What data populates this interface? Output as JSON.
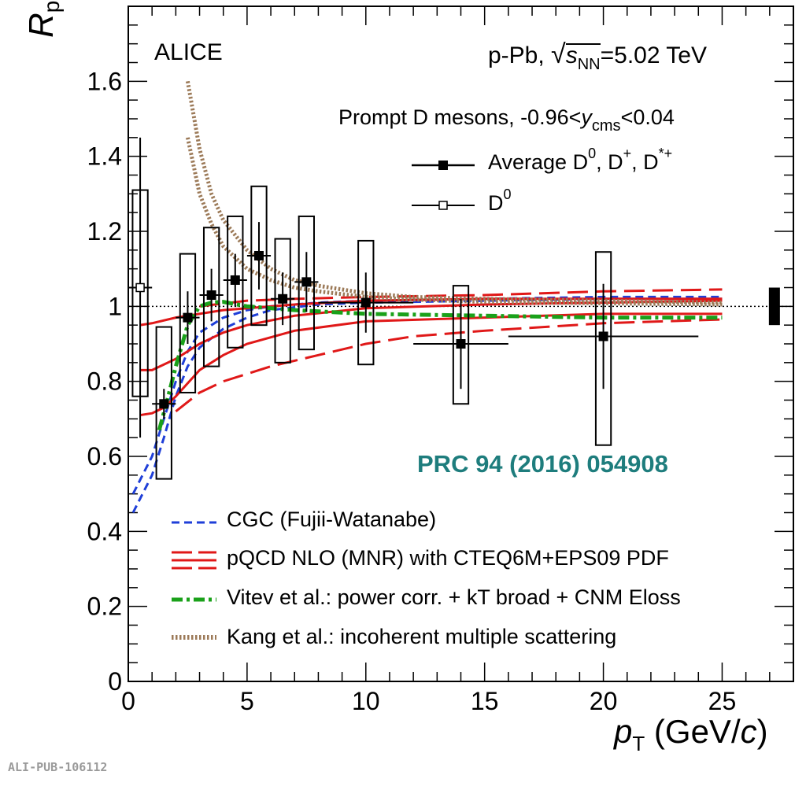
{
  "chart_data": {
    "type": "scatter",
    "title": "",
    "experiment": "ALICE",
    "system": {
      "prefix": "p-Pb, ",
      "s": "s",
      "sub": "NN",
      "energy": "=5.02 TeV"
    },
    "selection": {
      "label": "Prompt D mesons, -0.96<",
      "y": "y",
      "y_sub": "cms",
      "suffix": "<0.04"
    },
    "ylabel": {
      "main": "R",
      "sub": "pPb"
    },
    "xlabel": {
      "p": "p",
      "p_sub": "T",
      "unit_a": " (GeV/",
      "unit_c": "c",
      "unit_b": ")"
    },
    "xlim": [
      0,
      28
    ],
    "ylim": [
      0,
      1.8
    ],
    "xticks": [
      "0",
      "5",
      "10",
      "15",
      "20",
      "25"
    ],
    "yticks": [
      "0",
      "0.2",
      "0.4",
      "0.6",
      "0.8",
      "1",
      "1.2",
      "1.4",
      "1.6"
    ],
    "reference": "PRC 94 (2016) 054908",
    "footer": "ALI-PUB-106112",
    "colors": {
      "cgc": "#1f3fd8",
      "pqcd": "#e01818",
      "vitev": "#1aa11a",
      "kang": "#9c7a58",
      "reference": "#1e7d7d"
    },
    "series": [
      {
        "name": "Average D0, D+, D*+",
        "legend": {
          "text": "Average D",
          "s1": "0",
          "t1": ", D",
          "s2": "+",
          "t2": ", D",
          "s3": "*+"
        },
        "marker": "filled-square",
        "x": [
          1.5,
          2.5,
          3.5,
          4.5,
          5.5,
          6.5,
          7.5,
          10,
          14,
          20
        ],
        "xerr": [
          0.5,
          0.5,
          0.5,
          0.5,
          0.5,
          0.5,
          0.5,
          2,
          2,
          4
        ],
        "y": [
          0.74,
          0.97,
          1.03,
          1.07,
          1.135,
          1.02,
          1.065,
          1.01,
          0.9,
          0.92
        ],
        "stat": [
          0.04,
          0.07,
          0.07,
          0.07,
          0.09,
          0.07,
          0.08,
          0.08,
          0.12,
          0.14
        ],
        "syst_lo": [
          0.54,
          0.77,
          0.84,
          0.89,
          0.95,
          0.85,
          0.885,
          0.845,
          0.74,
          0.63
        ],
        "syst_hi": [
          0.945,
          1.14,
          1.21,
          1.24,
          1.32,
          1.18,
          1.24,
          1.175,
          1.055,
          1.145
        ]
      },
      {
        "name": "D0",
        "legend": {
          "text": "D",
          "s1": "0"
        },
        "marker": "open-square",
        "x": [
          0.5
        ],
        "xerr": [
          0.5
        ],
        "y": [
          1.05
        ],
        "stat": [
          0.4
        ],
        "syst_lo": [
          0.76
        ],
        "syst_hi": [
          1.31
        ]
      }
    ],
    "models": [
      {
        "name": "CGC (Fujii-Watanabe)",
        "style": "dashed",
        "color": "blue",
        "curves": [
          {
            "x": [
              0.2,
              1,
              1.5,
              2,
              2.5,
              3,
              4,
              5,
              6,
              8,
              10,
              15,
              20,
              25
            ],
            "y": [
              0.45,
              0.55,
              0.65,
              0.76,
              0.84,
              0.89,
              0.94,
              0.97,
              0.99,
              1.005,
              1.01,
              1.015,
              1.02,
              1.02
            ]
          },
          {
            "x": [
              0.2,
              1,
              1.5,
              2,
              2.5,
              3,
              4,
              5,
              6,
              8,
              10,
              15,
              20,
              25
            ],
            "y": [
              0.5,
              0.6,
              0.7,
              0.8,
              0.88,
              0.93,
              0.97,
              0.99,
              1.0,
              1.01,
              1.015,
              1.02,
              1.025,
              1.025
            ]
          }
        ]
      },
      {
        "name": "pQCD NLO (MNR) with CTEQ6M+EPS09 PDF",
        "style": "solid+dashed",
        "color": "red",
        "curves": [
          {
            "dash": false,
            "x": [
              0.5,
              1,
              1.5,
              2,
              3,
              4,
              5,
              7,
              10,
              15,
              20,
              25
            ],
            "y": [
              0.71,
              0.715,
              0.73,
              0.76,
              0.83,
              0.87,
              0.9,
              0.935,
              0.96,
              0.97,
              0.98,
              0.98
            ]
          },
          {
            "dash": false,
            "x": [
              0.5,
              1,
              2,
              3,
              4,
              5,
              7,
              10,
              15,
              20,
              25
            ],
            "y": [
              0.83,
              0.83,
              0.86,
              0.9,
              0.93,
              0.95,
              0.975,
              0.995,
              1.005,
              1.01,
              1.015
            ]
          },
          {
            "dash": false,
            "x": [
              0.5,
              1,
              2,
              3,
              4,
              5,
              7,
              10,
              15,
              20,
              25
            ],
            "y": [
              0.95,
              0.955,
              0.97,
              0.98,
              0.99,
              0.995,
              1.005,
              1.015,
              1.02,
              1.02,
              1.02
            ]
          },
          {
            "dash": true,
            "x": [
              2,
              3,
              4,
              5,
              6,
              8,
              10,
              12,
              15,
              20,
              25
            ],
            "y": [
              0.72,
              0.77,
              0.8,
              0.82,
              0.84,
              0.87,
              0.9,
              0.92,
              0.935,
              0.955,
              0.965
            ]
          },
          {
            "dash": true,
            "x": [
              3,
              5,
              7,
              10,
              15,
              20,
              25
            ],
            "y": [
              1.0,
              1.015,
              1.02,
              1.025,
              1.03,
              1.04,
              1.045
            ]
          }
        ]
      },
      {
        "name": "Vitev et al.: power corr. + kT broad + CNM Eloss",
        "style": "dash-dot",
        "color": "green",
        "curves": [
          {
            "x": [
              1.3,
              1.6,
              2,
              2.5,
              3,
              3.5,
              4,
              5,
              7,
              10,
              15,
              20,
              25
            ],
            "y": [
              0.67,
              0.74,
              0.84,
              0.95,
              1.0,
              1.01,
              1.012,
              1.0,
              0.99,
              0.98,
              0.975,
              0.97,
              0.97
            ]
          }
        ]
      },
      {
        "name": "Kang et al.: incoherent multiple scattering",
        "style": "dotted",
        "color": "brown",
        "curves": [
          {
            "x": [
              2.5,
              3,
              3.5,
              4,
              5,
              6,
              7,
              8,
              10,
              12,
              15,
              20,
              25
            ],
            "y": [
              1.6,
              1.42,
              1.3,
              1.23,
              1.15,
              1.1,
              1.07,
              1.055,
              1.035,
              1.025,
              1.02,
              1.015,
              1.01
            ]
          },
          {
            "x": [
              2.5,
              3,
              3.5,
              4,
              5,
              6,
              7,
              8,
              10,
              12,
              15,
              20,
              25
            ],
            "y": [
              1.45,
              1.3,
              1.22,
              1.16,
              1.1,
              1.07,
              1.05,
              1.04,
              1.025,
              1.018,
              1.012,
              1.008,
              1.005
            ]
          }
        ]
      }
    ],
    "normalization_box": {
      "x": 27.2,
      "y_lo": 0.95,
      "y_hi": 1.05
    },
    "legend_position": "bottom-left"
  }
}
